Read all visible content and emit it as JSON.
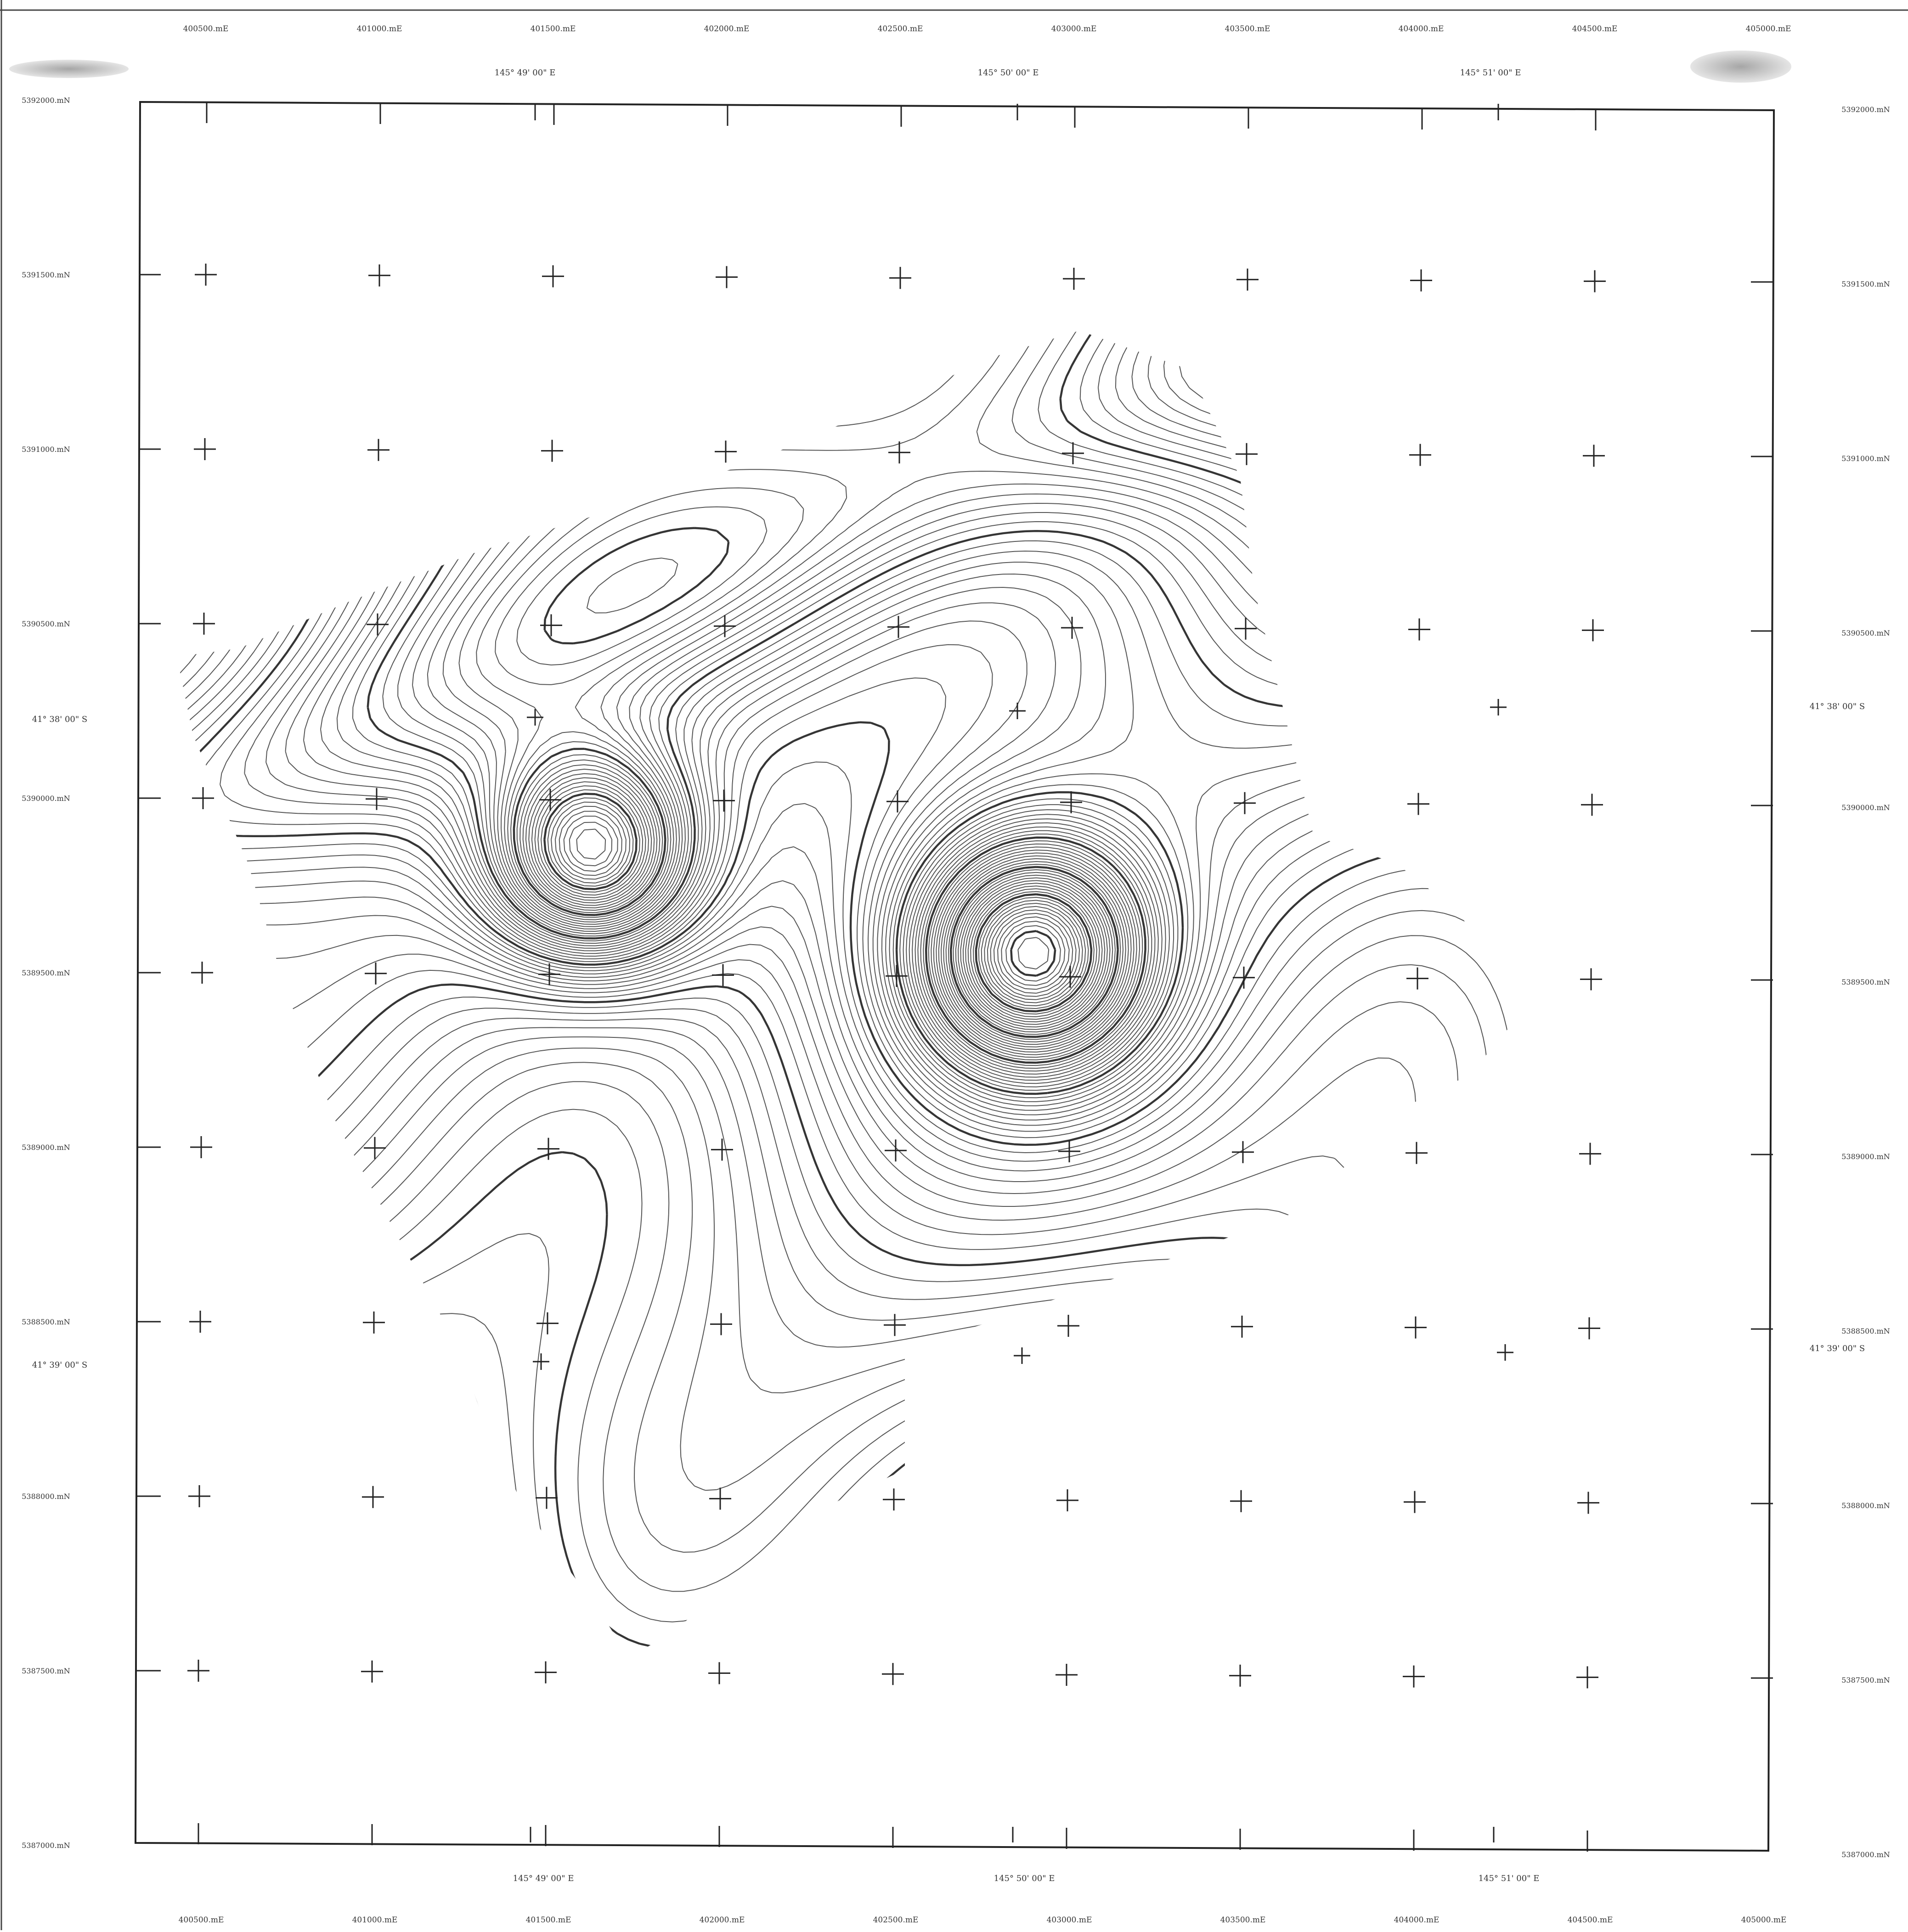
{
  "easting_labels": [
    "400500.mE",
    "401000.mE",
    "401500.mE",
    "402000.mE",
    "402500.mE",
    "403000.mE",
    "403500.mE",
    "404000.mE",
    "404500.mE",
    "405000.mE"
  ],
  "northing_labels": [
    "5392000.mN",
    "5391500.mN",
    "5391000.mN",
    "5390500.mN",
    "5390000.mN",
    "5389500.mN",
    "5389000.mN",
    "5388500.mN",
    "5388000.mN",
    "5387500.mN",
    "5387000.mN"
  ],
  "longitude_labels": [
    "145°  49' 00\" E",
    "145°  50' 00\" E",
    "145°  51' 00\" E"
  ],
  "latitude_labels": [
    "41°  38' 00\" S",
    "41°  39' 00\" S"
  ],
  "colors": {
    "ink": "#222222",
    "contour": "#2a2a2a",
    "paper": "#ffffff"
  },
  "map_features": [
    "bathymetric contour lines",
    "survey grid crosses",
    "two seamount peaks"
  ]
}
